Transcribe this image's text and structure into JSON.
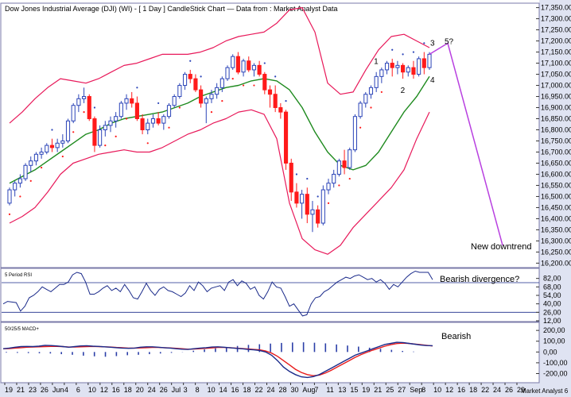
{
  "header": {
    "title": "Dow Jones Industrial Average (DJI) (WI) - [ 1 Day ] CandleStick Chart — Data from : Market Analyst Data"
  },
  "colors": {
    "up_candle": "#2b44b8",
    "down_candle": "#ff1a1a",
    "bollinger": "#e8195a",
    "moving_average": "#1e8a1e",
    "parabolic_sar_up": "#2b44b8",
    "parabolic_sar_down": "#ff1a1a",
    "rsi": "#1a2a8a",
    "macd": "#1a2a8a",
    "macd_signal": "#e81c1c",
    "projection": "#b840e0",
    "axis_bar": "#dfe3f2"
  },
  "price_panel": {
    "y_ticks": [
      "17,350.00",
      "17,300.00",
      "17,250.00",
      "17,200.00",
      "17,150.00",
      "17,100.00",
      "17,050.00",
      "17,000.00",
      "16,950.00",
      "16,900.00",
      "16,850.00",
      "16,800.00",
      "16,750.00",
      "16,700.00",
      "16,650.00",
      "16,600.00",
      "16,550.00",
      "16,500.00",
      "16,450.00",
      "16,400.00",
      "16,350.00",
      "16,300.00",
      "16,250.00",
      "16,200.00"
    ],
    "wave_labels": [
      "1",
      "2",
      "3",
      "4",
      "5?"
    ],
    "projection_label": "New downtrend"
  },
  "rsi_panel": {
    "title": "5 Period RSI",
    "y_ticks": [
      "82,00",
      "68,00",
      "54,00",
      "40,00",
      "26,00",
      "12,00"
    ],
    "annotation": "Bearish divergence?"
  },
  "macd_panel": {
    "title": "50/25/5 MACD+",
    "y_ticks": [
      "200,00",
      "100,00",
      "0,00",
      "-100,00",
      "-200,00"
    ],
    "annotation": "Bearish"
  },
  "x_axis": {
    "labels": [
      "19",
      "21",
      "23",
      "26",
      "Jun",
      "4",
      "6",
      "10",
      "12",
      "16",
      "18",
      "20",
      "24",
      "26",
      "Jul",
      "3",
      "8",
      "10",
      "14",
      "16",
      "18",
      "22",
      "24",
      "28",
      "30",
      "Aug",
      "7",
      "11",
      "13",
      "15",
      "19",
      "21",
      "25",
      "27",
      "Sep",
      "8",
      "10",
      "12",
      "16",
      "18",
      "22",
      "24",
      "26",
      "29"
    ],
    "source_label": "Market Analyst 6"
  },
  "chart_data": [
    {
      "type": "candlestick",
      "title": "Dow Jones Industrial Average (DJI) (WI) - [ 1 Day ] CandleStick Chart — Data from : Market Analyst Data",
      "ylim": [
        16180,
        17370
      ],
      "candles": [
        {
          "o": 16470,
          "h": 16540,
          "l": 16460,
          "c": 16530
        },
        {
          "o": 16530,
          "h": 16570,
          "l": 16500,
          "c": 16560
        },
        {
          "o": 16560,
          "h": 16600,
          "l": 16540,
          "c": 16580
        },
        {
          "o": 16580,
          "h": 16650,
          "l": 16570,
          "c": 16640
        },
        {
          "o": 16640,
          "h": 16680,
          "l": 16610,
          "c": 16660
        },
        {
          "o": 16660,
          "h": 16700,
          "l": 16640,
          "c": 16690
        },
        {
          "o": 16690,
          "h": 16720,
          "l": 16670,
          "c": 16700
        },
        {
          "o": 16700,
          "h": 16740,
          "l": 16690,
          "c": 16730
        },
        {
          "o": 16730,
          "h": 16760,
          "l": 16700,
          "c": 16720
        },
        {
          "o": 16720,
          "h": 16760,
          "l": 16700,
          "c": 16740
        },
        {
          "o": 16740,
          "h": 16780,
          "l": 16720,
          "c": 16750
        },
        {
          "o": 16750,
          "h": 16850,
          "l": 16740,
          "c": 16840
        },
        {
          "o": 16840,
          "h": 16920,
          "l": 16830,
          "c": 16910
        },
        {
          "o": 16910,
          "h": 16960,
          "l": 16880,
          "c": 16940
        },
        {
          "o": 16940,
          "h": 16990,
          "l": 16920,
          "c": 16950
        },
        {
          "o": 16950,
          "h": 16960,
          "l": 16840,
          "c": 16850
        },
        {
          "o": 16850,
          "h": 16860,
          "l": 16700,
          "c": 16730
        },
        {
          "o": 16730,
          "h": 16820,
          "l": 16720,
          "c": 16800
        },
        {
          "o": 16800,
          "h": 16840,
          "l": 16770,
          "c": 16820
        },
        {
          "o": 16820,
          "h": 16860,
          "l": 16790,
          "c": 16840
        },
        {
          "o": 16840,
          "h": 16880,
          "l": 16810,
          "c": 16860
        },
        {
          "o": 16860,
          "h": 16930,
          "l": 16850,
          "c": 16920
        },
        {
          "o": 16920,
          "h": 16960,
          "l": 16890,
          "c": 16940
        },
        {
          "o": 16940,
          "h": 16970,
          "l": 16900,
          "c": 16920
        },
        {
          "o": 16920,
          "h": 16950,
          "l": 16840,
          "c": 16850
        },
        {
          "o": 16850,
          "h": 16870,
          "l": 16780,
          "c": 16800
        },
        {
          "o": 16800,
          "h": 16850,
          "l": 16780,
          "c": 16830
        },
        {
          "o": 16830,
          "h": 16870,
          "l": 16810,
          "c": 16850
        },
        {
          "o": 16850,
          "h": 16880,
          "l": 16820,
          "c": 16830
        },
        {
          "o": 16830,
          "h": 16870,
          "l": 16800,
          "c": 16860
        },
        {
          "o": 16860,
          "h": 16920,
          "l": 16850,
          "c": 16910
        },
        {
          "o": 16910,
          "h": 16960,
          "l": 16900,
          "c": 16950
        },
        {
          "o": 16950,
          "h": 17010,
          "l": 16940,
          "c": 17000
        },
        {
          "o": 17000,
          "h": 17060,
          "l": 16980,
          "c": 17050
        },
        {
          "o": 17050,
          "h": 17070,
          "l": 17010,
          "c": 17030
        },
        {
          "o": 17030,
          "h": 17050,
          "l": 16970,
          "c": 16980
        },
        {
          "o": 16980,
          "h": 17000,
          "l": 16900,
          "c": 16920
        },
        {
          "o": 16920,
          "h": 16950,
          "l": 16830,
          "c": 16940
        },
        {
          "o": 16940,
          "h": 16980,
          "l": 16920,
          "c": 16960
        },
        {
          "o": 16960,
          "h": 17010,
          "l": 16940,
          "c": 16990
        },
        {
          "o": 16990,
          "h": 17040,
          "l": 16970,
          "c": 17030
        },
        {
          "o": 17030,
          "h": 17090,
          "l": 17020,
          "c": 17080
        },
        {
          "o": 17080,
          "h": 17140,
          "l": 17070,
          "c": 17130
        },
        {
          "o": 17130,
          "h": 17150,
          "l": 17050,
          "c": 17060
        },
        {
          "o": 17060,
          "h": 17120,
          "l": 17040,
          "c": 17110
        },
        {
          "o": 17110,
          "h": 17130,
          "l": 17060,
          "c": 17070
        },
        {
          "o": 17070,
          "h": 17100,
          "l": 17040,
          "c": 17090
        },
        {
          "o": 17090,
          "h": 17110,
          "l": 17040,
          "c": 17050
        },
        {
          "o": 17050,
          "h": 17060,
          "l": 16960,
          "c": 16980
        },
        {
          "o": 16980,
          "h": 17000,
          "l": 16900,
          "c": 16960
        },
        {
          "o": 16960,
          "h": 17000,
          "l": 16880,
          "c": 16900
        },
        {
          "o": 16900,
          "h": 16920,
          "l": 16850,
          "c": 16880
        },
        {
          "o": 16880,
          "h": 16890,
          "l": 16620,
          "c": 16650
        },
        {
          "o": 16650,
          "h": 16670,
          "l": 16480,
          "c": 16520
        },
        {
          "o": 16520,
          "h": 16560,
          "l": 16450,
          "c": 16470
        },
        {
          "o": 16470,
          "h": 16530,
          "l": 16400,
          "c": 16510
        },
        {
          "o": 16510,
          "h": 16540,
          "l": 16380,
          "c": 16420
        },
        {
          "o": 16420,
          "h": 16480,
          "l": 16340,
          "c": 16440
        },
        {
          "o": 16440,
          "h": 16460,
          "l": 16360,
          "c": 16380
        },
        {
          "o": 16380,
          "h": 16550,
          "l": 16370,
          "c": 16530
        },
        {
          "o": 16530,
          "h": 16580,
          "l": 16510,
          "c": 16560
        },
        {
          "o": 16560,
          "h": 16620,
          "l": 16540,
          "c": 16600
        },
        {
          "o": 16600,
          "h": 16670,
          "l": 16590,
          "c": 16660
        },
        {
          "o": 16660,
          "h": 16710,
          "l": 16600,
          "c": 16630
        },
        {
          "o": 16630,
          "h": 16720,
          "l": 16620,
          "c": 16710
        },
        {
          "o": 16710,
          "h": 16870,
          "l": 16700,
          "c": 16860
        },
        {
          "o": 16860,
          "h": 16930,
          "l": 16850,
          "c": 16920
        },
        {
          "o": 16920,
          "h": 16970,
          "l": 16900,
          "c": 16960
        },
        {
          "o": 16960,
          "h": 17000,
          "l": 16940,
          "c": 16990
        },
        {
          "o": 16990,
          "h": 17060,
          "l": 16970,
          "c": 17040
        },
        {
          "o": 17040,
          "h": 17080,
          "l": 17010,
          "c": 17070
        },
        {
          "o": 17070,
          "h": 17110,
          "l": 17050,
          "c": 17100
        },
        {
          "o": 17100,
          "h": 17120,
          "l": 17040,
          "c": 17080
        },
        {
          "o": 17080,
          "h": 17110,
          "l": 17050,
          "c": 17090
        },
        {
          "o": 17090,
          "h": 17100,
          "l": 17030,
          "c": 17060
        },
        {
          "o": 17060,
          "h": 17090,
          "l": 17040,
          "c": 17080
        },
        {
          "o": 17080,
          "h": 17110,
          "l": 17030,
          "c": 17050
        },
        {
          "o": 17050,
          "h": 17130,
          "l": 17040,
          "c": 17120
        },
        {
          "o": 17120,
          "h": 17150,
          "l": 17050,
          "c": 17080
        },
        {
          "o": 17080,
          "h": 17150,
          "l": 17070,
          "c": 17140
        }
      ],
      "bollinger_upper": [
        16830,
        16880,
        16940,
        16990,
        17030,
        17020,
        17010,
        17030,
        17060,
        17090,
        17100,
        17120,
        17140,
        17140,
        17140,
        17150,
        17170,
        17200,
        17220,
        17230,
        17240,
        17280,
        17340,
        17350,
        17240,
        17010,
        16960,
        16970,
        17070,
        17160,
        17220,
        17230,
        17200,
        17170
      ],
      "bollinger_lower": [
        16380,
        16410,
        16450,
        16520,
        16600,
        16650,
        16670,
        16690,
        16700,
        16710,
        16700,
        16700,
        16720,
        16750,
        16780,
        16800,
        16830,
        16850,
        16880,
        16890,
        16870,
        16760,
        16470,
        16310,
        16260,
        16240,
        16280,
        16360,
        16420,
        16480,
        16540,
        16620,
        16760,
        16880
      ],
      "moving_average": [
        16560,
        16590,
        16620,
        16660,
        16700,
        16740,
        16780,
        16800,
        16830,
        16850,
        16860,
        16870,
        16880,
        16900,
        16920,
        16950,
        16970,
        16990,
        17000,
        17020,
        17030,
        17020,
        16980,
        16900,
        16790,
        16700,
        16640,
        16620,
        16640,
        16700,
        16790,
        16880,
        16950,
        17040
      ],
      "projection": [
        {
          "label": "5?",
          "value": 17190
        },
        {
          "label": "New downtrend",
          "value": 16280
        }
      ],
      "wave_labels": [
        "1",
        "2",
        "3",
        "4",
        "5?"
      ]
    },
    {
      "type": "line",
      "title": "5 Period RSI",
      "ylim": [
        12,
        96
      ],
      "reference_lines": [
        26,
        75
      ],
      "series": [
        {
          "name": "RSI",
          "values": [
            40,
            44,
            43,
            42,
            28,
            36,
            50,
            54,
            60,
            68,
            64,
            60,
            66,
            72,
            72,
            76,
            88,
            92,
            90,
            76,
            56,
            56,
            60,
            66,
            70,
            62,
            66,
            60,
            72,
            62,
            50,
            48,
            60,
            74,
            62,
            54,
            64,
            68,
            62,
            60,
            56,
            52,
            58,
            70,
            62,
            76,
            70,
            60,
            66,
            68,
            70,
            62,
            76,
            80,
            70,
            78,
            74,
            64,
            68,
            54,
            48,
            60,
            76,
            68,
            66,
            52,
            36,
            40,
            30,
            20,
            22,
            40,
            50,
            52,
            60,
            64,
            70,
            76,
            80,
            84,
            82,
            86,
            88,
            84,
            80,
            82,
            76,
            80,
            74,
            64,
            72,
            68,
            76,
            84,
            90,
            94,
            92,
            92,
            92,
            80
          ]
        }
      ],
      "annotation": "Bearish divergence?"
    },
    {
      "type": "line",
      "title": "50/25/5 MACD+",
      "ylim": [
        -270,
        260
      ],
      "series": [
        {
          "name": "MACD",
          "values": [
            30,
            36,
            44,
            50,
            52,
            50,
            54,
            62,
            60,
            56,
            50,
            44,
            50,
            56,
            58,
            54,
            52,
            48,
            44,
            40,
            36,
            34,
            36,
            44,
            48,
            48,
            44,
            40,
            36,
            30,
            26,
            24,
            30,
            36,
            40,
            46,
            48,
            44,
            40,
            34,
            30,
            24,
            20,
            14,
            0,
            -30,
            -80,
            -140,
            -180,
            -210,
            -230,
            -236,
            -228,
            -210,
            -180,
            -150,
            -120,
            -90,
            -60,
            -30,
            -10,
            10,
            30,
            50,
            70,
            80,
            90,
            88,
            80,
            72,
            64,
            60,
            58
          ]
        },
        {
          "name": "Signal",
          "values": [
            30,
            32,
            36,
            40,
            44,
            46,
            48,
            50,
            52,
            52,
            50,
            46,
            46,
            48,
            50,
            52,
            50,
            48,
            46,
            42,
            40,
            36,
            36,
            38,
            40,
            42,
            42,
            40,
            38,
            34,
            30,
            26,
            28,
            30,
            34,
            38,
            42,
            42,
            40,
            36,
            32,
            28,
            24,
            20,
            10,
            -10,
            -40,
            -80,
            -120,
            -160,
            -190,
            -210,
            -220,
            -214,
            -196,
            -170,
            -140,
            -110,
            -80,
            -50,
            -24,
            -2,
            18,
            36,
            54,
            68,
            78,
            82,
            80,
            74,
            68,
            62,
            56
          ]
        }
      ],
      "histogram": [
        -6,
        -8,
        -10,
        -12,
        -14,
        -20,
        -26,
        -34,
        -40,
        -44,
        -38,
        -30,
        -26,
        -20,
        -14,
        -8,
        2,
        12,
        24,
        34,
        46,
        56,
        66,
        72,
        78,
        84,
        88,
        90,
        86,
        80,
        70,
        60,
        50,
        40,
        30,
        20,
        10,
        4
      ],
      "annotation": "Bearish"
    }
  ]
}
